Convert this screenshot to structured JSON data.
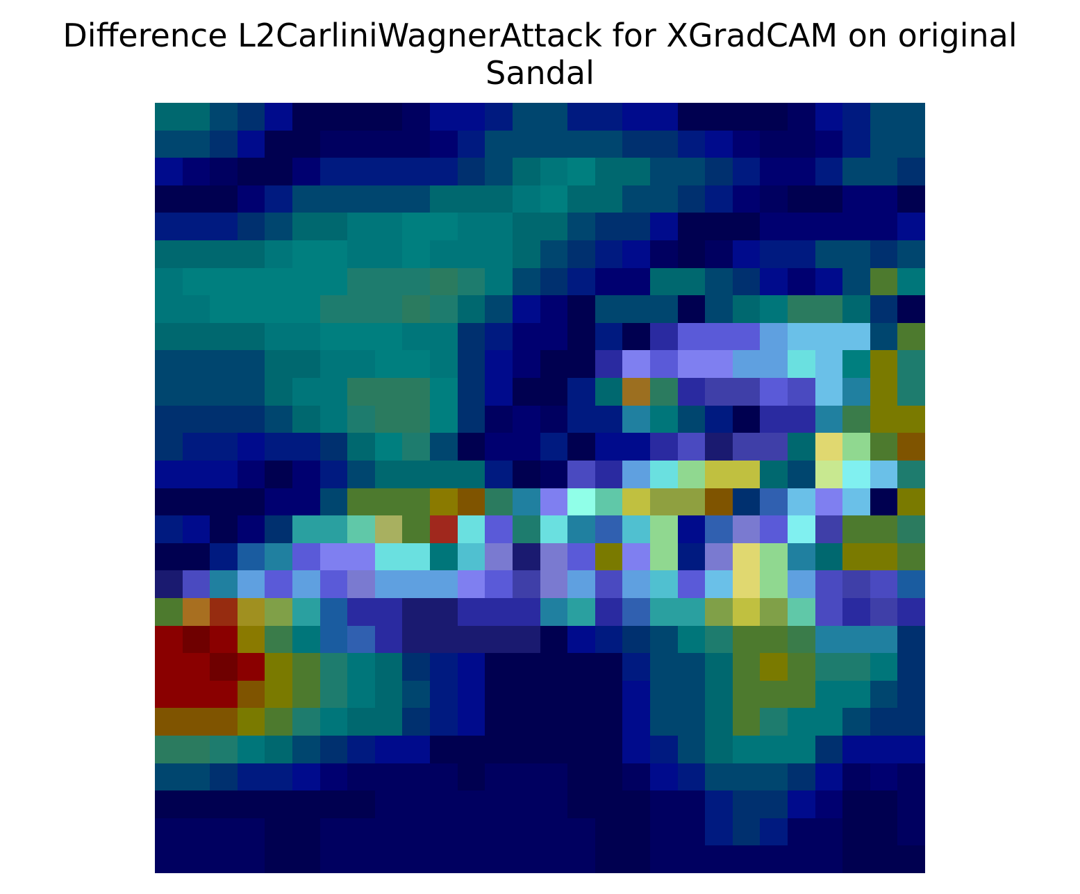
{
  "chart_data": {
    "type": "heatmap",
    "title_lines": [
      "Difference L2CarliniWagnerAttack for XGradCAM on original",
      "Sandal"
    ],
    "grid": false,
    "axes_visible": false,
    "rows": 28,
    "cols": 28,
    "palette": {
      "a": "#00686f",
      "b": "#00466f",
      "c": "#000b8c",
      "d": "#000050",
      "e": "#000060",
      "f": "#000070",
      "g": "#001a80",
      "h": "#00306f",
      "i": "#00767a",
      "j": "#007f7f",
      "k": "#00787d",
      "l": "#0b7f77",
      "m": "#1e7c6e",
      "n": "#2b7b5f",
      "o": "#3a7c4a",
      "p": "#4d7a2e",
      "q": "#7a7a00",
      "r": "#7f5400",
      "s": "#8a7a00",
      "t": "#9c6f20",
      "u": "#a0281d",
      "v": "#8a0000",
      "w": "#6f0000",
      "x": "#2a2aa0",
      "y": "#4a4ac0",
      "z": "#5a5ad8",
      "A": "#7f7ff0",
      "B": "#5fa0e0",
      "C": "#6ac0e8",
      "D": "#6ae0e0",
      "E": "#80f0f0",
      "F": "#90ffe8",
      "G": "#90d890",
      "H": "#c8e890",
      "I": "#e0d870",
      "J": "#c0c040",
      "K": "#8fa040",
      "L": "#2080a0",
      "M": "#3f3fa8",
      "N": "#2aa0a0",
      "O": "#60c8a8",
      "P": "#7a7ad0",
      "Q": "#1a1a70",
      "R": "#3060b0",
      "S": "#50c0d0",
      "T": "#1a5ca0",
      "U": "#a86f20",
      "V": "#962c10",
      "W": "#a09020",
      "X": "#80a048",
      "Y": "#a8b060",
      "Z": "#00005a"
    },
    "cells": [
      "aabhcddddeccgbbggccddddecgbb",
      "bbhcddeeeefgbbbbbhhgcfeefgbb",
      "cfeddfggggghbaijaabbhgffgbbh",
      "dddfgbbbbbaaaijaabbhgfeddffd",
      "ggghbaaiijjiiaabhhcdddfffffc",
      "aaaaijjiijiiiabhgcedecggbbhb",
      "ijjjjjjmmmnmibhgffaabhcfcbpi",
      "iijjjjmmmnmabcfdbbbdbainnahd",
      "aaaaiijjjiihgffdgdxzzzBCCCbpb",
      "bbbbaaiijjihcfddxAzAABBDCjqm",
      "bbbbaiinnnjhcddgatnxMMzyCLqm",
      "hhhhbaimnnjhefeggLibgdxxLoqq",
      "hggcgghajmbdffgdccxyQMMaIGpr",
      "cccfdfgbaaaagdeyxBDGJJabHECmr",
      "ddddffbpppsrnLAFOJKKrhRCACdqq",
      "gcdfhNNOYpuDzmDLRSGcRPzEMppn",
      "ddgTLzAADDiSPQPzqAGgPIGLaqqp",
      "QyLBzBzPBBBAzMPByBSzCIGByMyT",
      "pUVWXNTxxQQxxxLNxRNNXJXOyxMx",
      "vwvsoiTRxQQQQQdcghbimppoLLLh",
      "vvwvqpmiahgcdddddgbbapqpmmih",
      "vvvrqpmiabgcdddddcbbapppiibh",
      "rrrqpmiaahgcdddddcbbapmiibhh",
      "nnmiabhgccdddddddcgbaiiihccc",
      "bbhggcfeeeedeeeddecgbbbhcefe",
      "ddddddddeeeeeeedddeeghhcfdde",
      "eeeeddeeeeeeeeeeddeeghgeedde",
      "eeeeddeeeeeeeeeeddeeeeeeeddd"
    ]
  }
}
